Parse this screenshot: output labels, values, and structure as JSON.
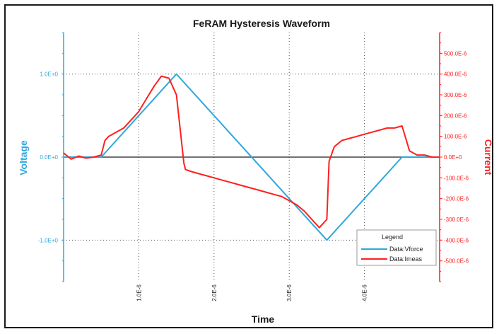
{
  "colors": {
    "voltage": "#2ea7dc",
    "current": "#ff1f1f",
    "grid": "#555555",
    "zero_line": "#444444"
  },
  "chart_data": {
    "type": "line",
    "title": "FeRAM Hysteresis Waveform",
    "xlabel": "Time",
    "ylabel_left": "Voltage",
    "ylabel_right": "Current",
    "xlim": [
      0,
      5e-06
    ],
    "ylim_left": [
      -1.5,
      1.5
    ],
    "ylim_right": [
      -0.0006,
      0.0006
    ],
    "x_ticks": [
      {
        "value": 1e-06,
        "label": "1.0E-6"
      },
      {
        "value": 2e-06,
        "label": "2.0E-6"
      },
      {
        "value": 3e-06,
        "label": "3.0E-6"
      },
      {
        "value": 4e-06,
        "label": "4.0E-6"
      }
    ],
    "left_ticks": [
      {
        "value": 1.0,
        "label": "1.0E+0"
      },
      {
        "value": 0.0,
        "label": "0.0E+0"
      },
      {
        "value": -1.0,
        "label": "-1.0E+0"
      }
    ],
    "right_ticks": [
      {
        "value": 0.0005,
        "label": "500.0E-6"
      },
      {
        "value": 0.0004,
        "label": "400.0E-6"
      },
      {
        "value": 0.0003,
        "label": "300.0E-6"
      },
      {
        "value": 0.0002,
        "label": "200.0E-6"
      },
      {
        "value": 0.0001,
        "label": "100.0E-6"
      },
      {
        "value": 0.0,
        "label": "0.0E+0"
      },
      {
        "value": -0.0001,
        "label": "-100.0E-6"
      },
      {
        "value": -0.0002,
        "label": "-200.0E-6"
      },
      {
        "value": -0.0003,
        "label": "-300.0E-6"
      },
      {
        "value": -0.0004,
        "label": "-400.0E-6"
      },
      {
        "value": -0.0005,
        "label": "-500.0E-6"
      }
    ],
    "grid": true,
    "legend": {
      "title": "Legend",
      "position": "bottom-right",
      "entries": [
        "Data:Vforce",
        "Data:Imeas"
      ]
    },
    "series": [
      {
        "name": "Data:Vforce",
        "axis": "left",
        "x": [
          0,
          5e-07,
          1.5e-06,
          3.5e-06,
          4.5e-06,
          5e-06
        ],
        "y": [
          0,
          0,
          1.0,
          -1.0,
          0,
          0
        ]
      },
      {
        "name": "Data:Imeas",
        "axis": "right",
        "x": [
          0,
          5e-08,
          1e-07,
          2e-07,
          3e-07,
          4e-07,
          5e-07,
          5.5e-07,
          6e-07,
          7e-07,
          8e-07,
          9e-07,
          1e-06,
          1.1e-06,
          1.2e-06,
          1.3e-06,
          1.4e-06,
          1.5e-06,
          1.6e-06,
          1.62e-06,
          1.7e-06,
          1.8e-06,
          1.9e-06,
          2e-06,
          2.1e-06,
          2.2e-06,
          2.3e-06,
          2.4e-06,
          2.5e-06,
          2.6e-06,
          2.7e-06,
          2.8e-06,
          2.9e-06,
          3e-06,
          3.1e-06,
          3.2e-06,
          3.3e-06,
          3.4e-06,
          3.5e-06,
          3.53e-06,
          3.6e-06,
          3.7e-06,
          3.8e-06,
          3.9e-06,
          4e-06,
          4.1e-06,
          4.2e-06,
          4.3e-06,
          4.4e-06,
          4.5e-06,
          4.6e-06,
          4.7e-06,
          4.8e-06,
          4.9e-06,
          5e-06
        ],
        "y": [
          2e-05,
          5e-06,
          -1e-05,
          5e-06,
          -5e-06,
          0.0,
          1e-05,
          8e-05,
          0.0001,
          0.00012,
          0.00014,
          0.00018,
          0.00022,
          0.00028,
          0.00034,
          0.00039,
          0.00038,
          0.0003,
          -3e-05,
          -6e-05,
          -7e-05,
          -8e-05,
          -9e-05,
          -0.0001,
          -0.00011,
          -0.00012,
          -0.00013,
          -0.00014,
          -0.00015,
          -0.00016,
          -0.00017,
          -0.00018,
          -0.00019,
          -0.00021,
          -0.00023,
          -0.00026,
          -0.0003,
          -0.00034,
          -0.0003,
          -2e-05,
          5e-05,
          8e-05,
          9e-05,
          0.0001,
          0.00011,
          0.00012,
          0.00013,
          0.00014,
          0.00014,
          0.00015,
          3e-05,
          1e-05,
          1e-05,
          0.0,
          0.0
        ]
      }
    ]
  }
}
